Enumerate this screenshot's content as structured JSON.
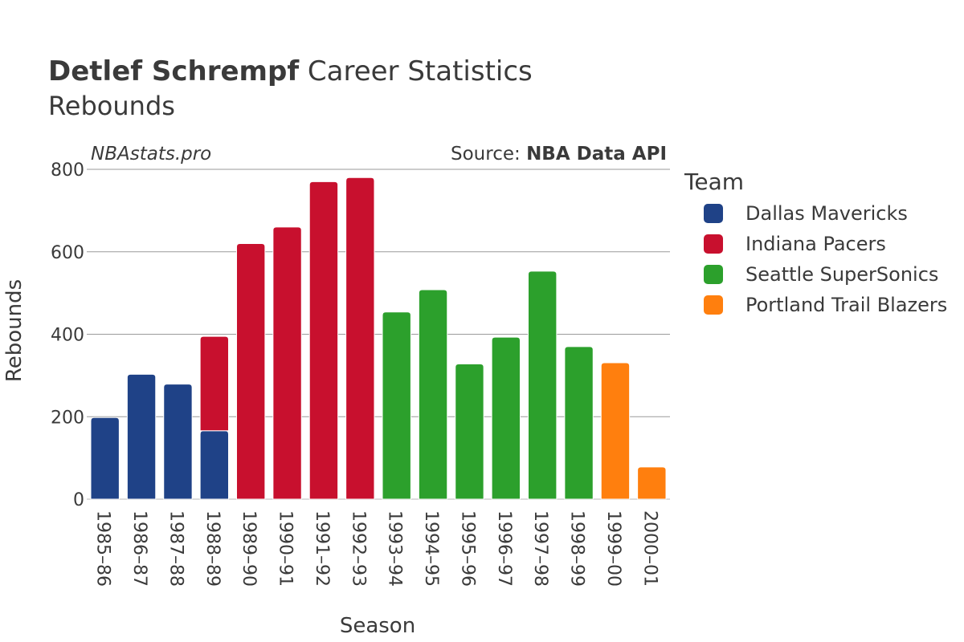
{
  "chart_data": {
    "type": "bar",
    "stacked": true,
    "title_bold": "Detlef Schrempf",
    "title_rest": " Career Statistics",
    "subtitle": "Rebounds",
    "watermark": "NBAstats.pro",
    "source_prefix": "Source: ",
    "source_name": "NBA Data API",
    "xlabel": "Season",
    "ylabel": "Rebounds",
    "ylim": [
      0,
      800
    ],
    "yticks": [
      0,
      200,
      400,
      600,
      800
    ],
    "grid": true,
    "legend_title": "Team",
    "legend_position": "right",
    "categories": [
      "1985–86",
      "1986–87",
      "1987–88",
      "1988–89",
      "1989–90",
      "1990–91",
      "1991–92",
      "1992–93",
      "1993–94",
      "1994–95",
      "1995–96",
      "1996–97",
      "1997–98",
      "1998–99",
      "1999–00",
      "2000–01"
    ],
    "series": [
      {
        "name": "Dallas Mavericks",
        "color": "#1f4287",
        "values": [
          198,
          303,
          279,
          166,
          0,
          0,
          0,
          0,
          0,
          0,
          0,
          0,
          0,
          0,
          0,
          0
        ]
      },
      {
        "name": "Indiana Pacers",
        "color": "#c8102e",
        "values": [
          0,
          0,
          0,
          229,
          620,
          660,
          770,
          780,
          0,
          0,
          0,
          0,
          0,
          0,
          0,
          0
        ]
      },
      {
        "name": "Seattle SuperSonics",
        "color": "#2ca02c",
        "values": [
          0,
          0,
          0,
          0,
          0,
          0,
          0,
          0,
          454,
          508,
          328,
          393,
          553,
          370,
          0,
          0
        ]
      },
      {
        "name": "Portland Trail Blazers",
        "color": "#ff7f0e",
        "values": [
          0,
          0,
          0,
          0,
          0,
          0,
          0,
          0,
          0,
          0,
          0,
          0,
          0,
          0,
          331,
          78
        ]
      }
    ]
  }
}
